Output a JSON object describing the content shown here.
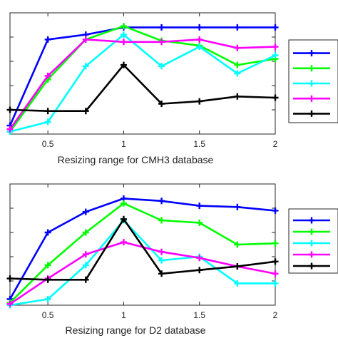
{
  "chart_data": [
    {
      "type": "line",
      "xlabel": "Resizing range for CMH3 database",
      "ylabel": "",
      "xlim": [
        0.25,
        2
      ],
      "ylim": [
        0,
        1
      ],
      "xticks": [
        0.5,
        1,
        1.5,
        2
      ],
      "xtick_labels": [
        "0.5",
        "1",
        "1.5",
        "2"
      ],
      "grid": false,
      "legend_position": "right",
      "x": [
        0.25,
        0.5,
        0.75,
        1,
        1.25,
        1.5,
        1.75,
        2
      ],
      "series": [
        {
          "name": "",
          "color": "#0000ff",
          "values": [
            0.07,
            0.78,
            0.82,
            0.88,
            0.88,
            0.88,
            0.88,
            0.88
          ]
        },
        {
          "name": "",
          "color": "#00ff00",
          "values": [
            0.02,
            0.45,
            0.78,
            0.89,
            0.77,
            0.73,
            0.57,
            0.62
          ]
        },
        {
          "name": "",
          "color": "#00ffff",
          "values": [
            0.02,
            0.1,
            0.56,
            0.82,
            0.56,
            0.72,
            0.5,
            0.65
          ]
        },
        {
          "name": "",
          "color": "#ff00ff",
          "values": [
            0.04,
            0.48,
            0.78,
            0.76,
            0.76,
            0.78,
            0.71,
            0.72
          ]
        },
        {
          "name": "",
          "color": "#000000",
          "values": [
            0.2,
            0.19,
            0.19,
            0.57,
            0.25,
            0.27,
            0.31,
            0.3
          ]
        }
      ]
    },
    {
      "type": "line",
      "xlabel": "Resizing range for D2 database",
      "ylabel": "",
      "xlim": [
        0.25,
        2
      ],
      "ylim": [
        0,
        1
      ],
      "xticks": [
        0.5,
        1,
        1.5,
        2
      ],
      "xtick_labels": [
        "0.5",
        "1",
        "1.5",
        "2"
      ],
      "grid": false,
      "legend_position": "right",
      "x": [
        0.25,
        0.5,
        0.75,
        1,
        1.25,
        1.5,
        1.75,
        2
      ],
      "series": [
        {
          "name": "",
          "color": "#0000ff",
          "values": [
            0.05,
            0.6,
            0.77,
            0.88,
            0.86,
            0.82,
            0.81,
            0.78
          ]
        },
        {
          "name": "",
          "color": "#00ff00",
          "values": [
            0.02,
            0.33,
            0.6,
            0.84,
            0.7,
            0.68,
            0.5,
            0.51
          ]
        },
        {
          "name": "",
          "color": "#00ffff",
          "values": [
            0.0,
            0.05,
            0.33,
            0.7,
            0.37,
            0.4,
            0.18,
            0.18
          ]
        },
        {
          "name": "",
          "color": "#ff00ff",
          "values": [
            0.01,
            0.22,
            0.42,
            0.52,
            0.44,
            0.39,
            0.32,
            0.26
          ]
        },
        {
          "name": "",
          "color": "#000000",
          "values": [
            0.22,
            0.21,
            0.21,
            0.71,
            0.26,
            0.29,
            0.32,
            0.36
          ]
        }
      ]
    }
  ]
}
